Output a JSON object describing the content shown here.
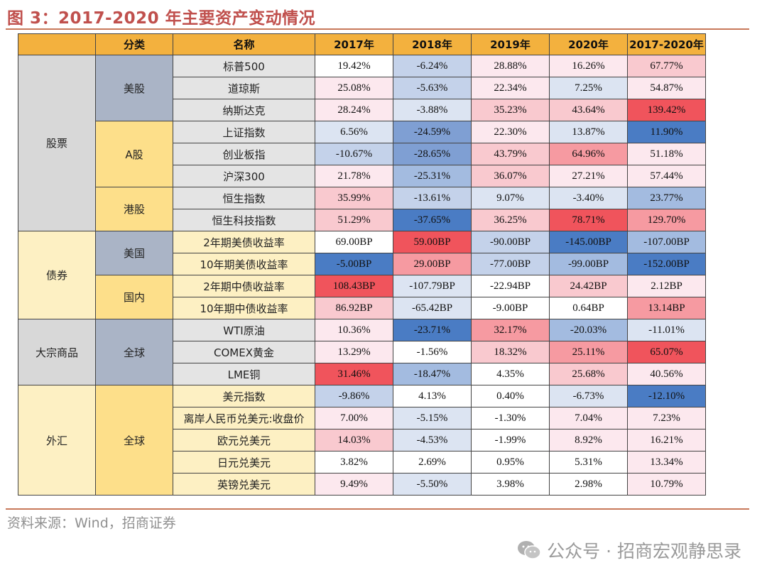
{
  "title": "图 3：2017-2020 年主要资产变动情况",
  "headers": [
    "分类",
    "名称",
    "2017年",
    "2018年",
    "2019年",
    "2020年",
    "2017-2020年"
  ],
  "groups": [
    {
      "category": "股票",
      "subgroups": [
        {
          "name": "美股",
          "rows": [
            {
              "name": "标普500",
              "values": [
                "19.42%",
                "-6.24%",
                "28.88%",
                "16.26%",
                "67.77%"
              ]
            },
            {
              "name": "道琼斯",
              "values": [
                "25.08%",
                "-5.63%",
                "22.34%",
                "7.25%",
                "54.87%"
              ]
            },
            {
              "name": "纳斯达克",
              "values": [
                "28.24%",
                "-3.88%",
                "35.23%",
                "43.64%",
                "139.42%"
              ]
            }
          ]
        },
        {
          "name": "A股",
          "rows": [
            {
              "name": "上证指数",
              "values": [
                "6.56%",
                "-24.59%",
                "22.30%",
                "13.87%",
                "11.90%"
              ]
            },
            {
              "name": "创业板指",
              "values": [
                "-10.67%",
                "-28.65%",
                "43.79%",
                "64.96%",
                "51.18%"
              ]
            },
            {
              "name": "沪深300",
              "values": [
                "21.78%",
                "-25.31%",
                "36.07%",
                "27.21%",
                "57.44%"
              ]
            }
          ]
        },
        {
          "name": "港股",
          "rows": [
            {
              "name": "恒生指数",
              "values": [
                "35.99%",
                "-13.61%",
                "9.07%",
                "-3.40%",
                "23.77%"
              ]
            },
            {
              "name": "恒生科技指数",
              "values": [
                "51.29%",
                "-37.65%",
                "36.25%",
                "78.71%",
                "129.70%"
              ]
            }
          ]
        }
      ]
    },
    {
      "category": "债券",
      "subgroups": [
        {
          "name": "美国",
          "rows": [
            {
              "name": "2年期美债收益率",
              "values": [
                "69.00BP",
                "59.00BP",
                "-90.00BP",
                "-145.00BP",
                "-107.00BP"
              ]
            },
            {
              "name": "10年期美债收益率",
              "values": [
                "-5.00BP",
                "29.00BP",
                "-77.00BP",
                "-99.00BP",
                "-152.00BP"
              ]
            }
          ]
        },
        {
          "name": "国内",
          "rows": [
            {
              "name": "2年期中债收益率",
              "values": [
                "108.43BP",
                "-107.79BP",
                "-22.94BP",
                "24.42BP",
                "2.12BP"
              ]
            },
            {
              "name": "10年期中债收益率",
              "values": [
                "86.92BP",
                "-65.42BP",
                "-9.00BP",
                "0.64BP",
                "13.14BP"
              ]
            }
          ]
        }
      ]
    },
    {
      "category": "大宗商品",
      "subgroups": [
        {
          "name": "全球",
          "rows": [
            {
              "name": "WTI原油",
              "values": [
                "10.36%",
                "-23.71%",
                "32.17%",
                "-20.03%",
                "-11.01%"
              ]
            },
            {
              "name": "COMEX黄金",
              "values": [
                "13.29%",
                "-1.56%",
                "18.32%",
                "25.11%",
                "65.07%"
              ]
            },
            {
              "name": "LME铜",
              "values": [
                "31.46%",
                "-18.47%",
                "4.35%",
                "25.68%",
                "40.56%"
              ]
            }
          ]
        }
      ]
    },
    {
      "category": "外汇",
      "subgroups": [
        {
          "name": "全球",
          "rows": [
            {
              "name": "美元指数",
              "values": [
                "-9.86%",
                "4.13%",
                "0.40%",
                "-6.73%",
                "-12.10%"
              ]
            },
            {
              "name": "离岸人民币兑美元:收盘价",
              "values": [
                "7.00%",
                "-5.15%",
                "-1.30%",
                "7.04%",
                "7.23%"
              ]
            },
            {
              "name": "欧元兑美元",
              "values": [
                "14.03%",
                "-4.53%",
                "-1.99%",
                "8.92%",
                "16.21%"
              ]
            },
            {
              "name": "日元兑美元",
              "values": [
                "3.82%",
                "2.69%",
                "0.95%",
                "5.31%",
                "13.34%"
              ]
            },
            {
              "name": "英镑兑美元",
              "values": [
                "9.49%",
                "-5.50%",
                "3.98%",
                "2.98%",
                "10.79%"
              ]
            }
          ]
        }
      ]
    }
  ],
  "source": "资料来源：Wind，招商证券",
  "watermark": "公众号 · 招商宏观静思录",
  "colors": {
    "header": "#f3b13e",
    "title": "#c0504d",
    "rule": "#c8785a",
    "positive": "#f0545c",
    "negative": "#4a7cc4"
  }
}
